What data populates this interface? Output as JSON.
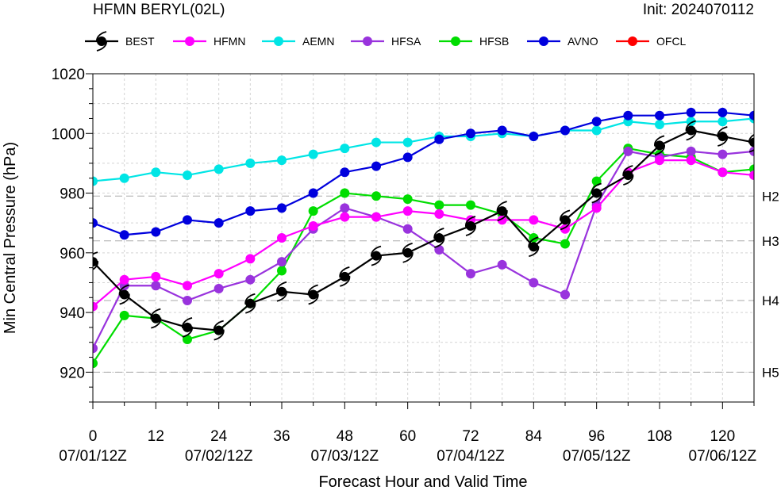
{
  "header": {
    "title": "HFMN BERYL(02L)",
    "init": "Init: 2024070112"
  },
  "chart_data": {
    "type": "line",
    "title": "HFMN BERYL(02L)",
    "xlabel": "Forecast Hour and Valid Time",
    "ylabel": "Min Central Pressure (hPa)",
    "xlim": [
      0,
      126
    ],
    "ylim": [
      910,
      1020
    ],
    "x_ticks": [
      0,
      12,
      24,
      36,
      48,
      60,
      72,
      84,
      96,
      108,
      120
    ],
    "x_tick_labels": [
      "0",
      "12",
      "24",
      "36",
      "48",
      "60",
      "72",
      "84",
      "96",
      "108",
      "120"
    ],
    "date_labels": [
      {
        "x": 0,
        "label": "07/01/12Z"
      },
      {
        "x": 24,
        "label": "07/02/12Z"
      },
      {
        "x": 48,
        "label": "07/03/12Z"
      },
      {
        "x": 72,
        "label": "07/04/12Z"
      },
      {
        "x": 96,
        "label": "07/05/12Z"
      },
      {
        "x": 120,
        "label": "07/06/12Z"
      }
    ],
    "y_ticks": [
      920,
      940,
      960,
      980,
      1000,
      1020
    ],
    "grid": true,
    "legend_position": "top",
    "category_lines": [
      {
        "label": "H2",
        "value": 979
      },
      {
        "label": "H3",
        "value": 964
      },
      {
        "label": "H4",
        "value": 944
      },
      {
        "label": "H5",
        "value": 920
      }
    ],
    "series": [
      {
        "name": "BEST",
        "color": "#000000",
        "marker": "hurricane-icon",
        "x": [
          0,
          6,
          12,
          18,
          24,
          30,
          36,
          42,
          48,
          54,
          60,
          66,
          72,
          78,
          84,
          90,
          96,
          102,
          108,
          114,
          120,
          126
        ],
        "y": [
          957,
          946,
          938,
          935,
          934,
          943,
          947,
          946,
          952,
          959,
          960,
          965,
          969,
          974,
          962,
          971,
          980,
          986,
          996,
          1001,
          999,
          997
        ]
      },
      {
        "name": "HFMN",
        "color": "#ff00ff",
        "marker": "circle",
        "x": [
          0,
          6,
          12,
          18,
          24,
          30,
          36,
          42,
          48,
          54,
          60,
          66,
          72,
          78,
          84,
          90,
          96,
          102,
          108,
          114,
          120,
          126
        ],
        "y": [
          942,
          951,
          952,
          949,
          953,
          958,
          965,
          969,
          972,
          972,
          974,
          973,
          971,
          971,
          971,
          968,
          975,
          987,
          991,
          991,
          987,
          986
        ]
      },
      {
        "name": "AEMN",
        "color": "#00e5e5",
        "marker": "circle",
        "x": [
          0,
          6,
          12,
          18,
          24,
          30,
          36,
          42,
          48,
          54,
          60,
          66,
          72,
          78,
          84,
          90,
          96,
          102,
          108,
          114,
          120,
          126
        ],
        "y": [
          984,
          985,
          987,
          986,
          988,
          990,
          991,
          993,
          995,
          997,
          997,
          999,
          999,
          1000,
          999,
          1001,
          1001,
          1004,
          1003,
          1004,
          1004,
          1005
        ]
      },
      {
        "name": "HFSA",
        "color": "#9933dd",
        "marker": "circle",
        "x": [
          0,
          6,
          12,
          18,
          24,
          30,
          36,
          42,
          48,
          54,
          60,
          66,
          72,
          78,
          84,
          90,
          96,
          102,
          108,
          114,
          120,
          126
        ],
        "y": [
          928,
          949,
          949,
          944,
          948,
          951,
          957,
          968,
          975,
          972,
          968,
          961,
          953,
          956,
          950,
          946,
          976,
          994,
          992,
          994,
          993,
          994
        ]
      },
      {
        "name": "HFSB",
        "color": "#00dd00",
        "marker": "circle",
        "x": [
          0,
          6,
          12,
          18,
          24,
          30,
          36,
          42,
          48,
          54,
          60,
          66,
          72,
          78,
          84,
          90,
          96,
          102,
          108,
          114,
          120,
          126
        ],
        "y": [
          923,
          939,
          938,
          931,
          934,
          943,
          954,
          974,
          980,
          979,
          978,
          976,
          976,
          973,
          965,
          963,
          984,
          995,
          993,
          992,
          987,
          988
        ]
      },
      {
        "name": "AVNO",
        "color": "#0000dd",
        "marker": "circle",
        "x": [
          0,
          6,
          12,
          18,
          24,
          30,
          36,
          42,
          48,
          54,
          60,
          66,
          72,
          78,
          84,
          90,
          96,
          102,
          108,
          114,
          120,
          126
        ],
        "y": [
          970,
          966,
          967,
          971,
          970,
          974,
          975,
          980,
          987,
          989,
          992,
          998,
          1000,
          1001,
          999,
          1001,
          1004,
          1006,
          1006,
          1007,
          1007,
          1006
        ]
      },
      {
        "name": "OFCL",
        "color": "#ff0000",
        "marker": "circle",
        "x": [],
        "y": []
      }
    ]
  }
}
